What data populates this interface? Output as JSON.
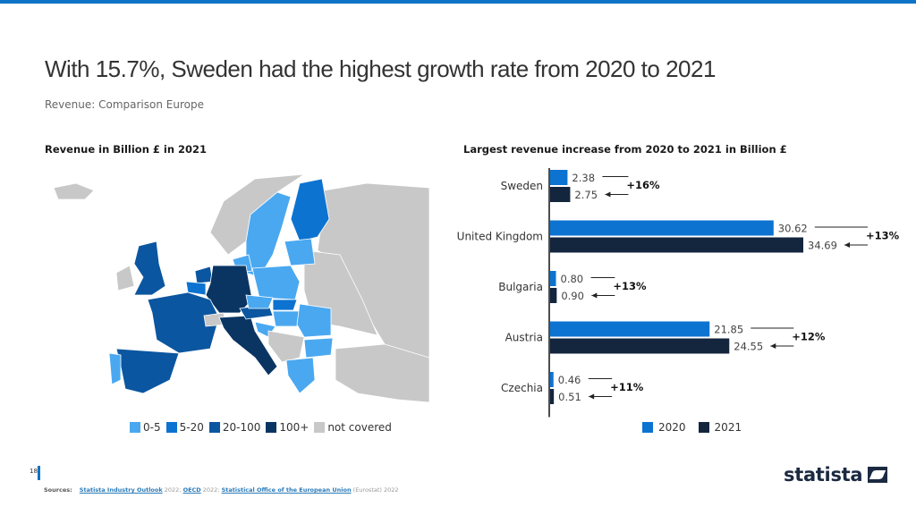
{
  "header": {
    "title": "With 15.7%, Sweden had the highest growth rate from 2020 to 2021",
    "subtitle": "Revenue: Comparison Europe"
  },
  "map": {
    "title": "Revenue in Billion £ in 2021",
    "legend": [
      {
        "label": "0-5",
        "color": "#4aa8f0"
      },
      {
        "label": "5-20",
        "color": "#0c73d1"
      },
      {
        "label": "20-100",
        "color": "#0b56a0"
      },
      {
        "label": "100+",
        "color": "#0a3563"
      },
      {
        "label": "not covered",
        "color": "#c8c8c8"
      }
    ],
    "regions": [
      {
        "name": "Iceland",
        "category": "not covered"
      },
      {
        "name": "Norway",
        "category": "not covered"
      },
      {
        "name": "Sweden",
        "category": "0-5"
      },
      {
        "name": "Finland",
        "category": "5-20"
      },
      {
        "name": "Russia",
        "category": "not covered"
      },
      {
        "name": "Baltics",
        "category": "0-5"
      },
      {
        "name": "Denmark",
        "category": "0-5"
      },
      {
        "name": "Ireland",
        "category": "not covered"
      },
      {
        "name": "United Kingdom",
        "category": "20-100"
      },
      {
        "name": "Netherlands",
        "category": "20-100"
      },
      {
        "name": "Belgium",
        "category": "5-20"
      },
      {
        "name": "Germany",
        "category": "100+"
      },
      {
        "name": "France",
        "category": "20-100"
      },
      {
        "name": "Spain",
        "category": "20-100"
      },
      {
        "name": "Portugal",
        "category": "0-5"
      },
      {
        "name": "Switzerland",
        "category": "not covered"
      },
      {
        "name": "Italy",
        "category": "100+"
      },
      {
        "name": "Austria",
        "category": "20-100"
      },
      {
        "name": "Poland",
        "category": "0-5"
      },
      {
        "name": "Czechia",
        "category": "0-5"
      },
      {
        "name": "Slovakia",
        "category": "5-20"
      },
      {
        "name": "Hungary",
        "category": "0-5"
      },
      {
        "name": "Romania",
        "category": "0-5"
      },
      {
        "name": "Bulgaria",
        "category": "0-5"
      },
      {
        "name": "Croatia",
        "category": "0-5"
      },
      {
        "name": "Greece",
        "category": "0-5"
      },
      {
        "name": "Balkans",
        "category": "not covered"
      },
      {
        "name": "Ukraine/Belarus",
        "category": "not covered"
      },
      {
        "name": "Turkey",
        "category": "not covered"
      }
    ]
  },
  "chart_data": {
    "type": "bar",
    "orientation": "horizontal",
    "title": "Largest revenue increase from 2020 to 2021 in Billion £",
    "categories": [
      "Sweden",
      "United Kingdom",
      "Bulgaria",
      "Austria",
      "Czechia"
    ],
    "series": [
      {
        "name": "2020",
        "color": "#0c73d1",
        "values": [
          2.38,
          30.62,
          0.8,
          21.85,
          0.46
        ],
        "labels": [
          "2.38",
          "30.62",
          "0.80",
          "21.85",
          "0.46"
        ]
      },
      {
        "name": "2021",
        "color": "#14253e",
        "values": [
          2.75,
          34.69,
          0.9,
          24.55,
          0.51
        ],
        "labels": [
          "2.75",
          "34.69",
          "0.90",
          "24.55",
          "0.51"
        ]
      }
    ],
    "growth_labels": [
      "+16%",
      "+13%",
      "+13%",
      "+12%",
      "+11%"
    ],
    "xlim": [
      0,
      34.69
    ],
    "legend_position": "bottom",
    "grid": false
  },
  "footer": {
    "page_number": "18",
    "sources_label": "Sources:",
    "sources": [
      {
        "text": "Statista Industry Outlook",
        "link": true
      },
      {
        "text": " 2022; ",
        "link": false
      },
      {
        "text": "OECD",
        "link": true
      },
      {
        "text": " 2022; ",
        "link": false
      },
      {
        "text": "Statistical Office of the European Union",
        "link": true
      },
      {
        "text": " (Eurostat) 2022",
        "link": false
      }
    ],
    "logo_text": "statista"
  }
}
